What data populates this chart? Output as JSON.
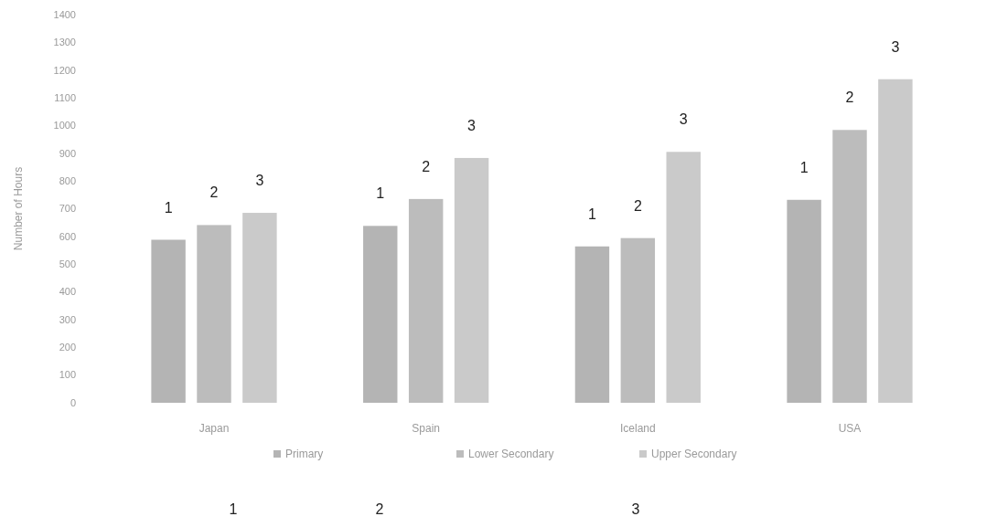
{
  "chart_data": {
    "type": "bar",
    "ylabel": "Number of Hours",
    "categories": [
      "Japan",
      "Spain",
      "Iceland",
      "USA"
    ],
    "series": [
      {
        "name": "Primary",
        "color": "#b4b4b4",
        "values": [
          588,
          638,
          564,
          732
        ]
      },
      {
        "name": "Lower Secondary",
        "color": "#bcbcbc",
        "values": [
          641,
          735,
          594,
          984
        ]
      },
      {
        "name": "Upper Secondary",
        "color": "#cacaca",
        "values": [
          685,
          883,
          905,
          1167
        ]
      }
    ],
    "ylim": [
      0,
      1400
    ],
    "yticks": [
      0,
      100,
      200,
      300,
      400,
      500,
      600,
      700,
      800,
      900,
      1000,
      1100,
      1200,
      1300,
      1400
    ],
    "legend": "bottom",
    "annotations": [
      "1",
      "2",
      "3",
      "1",
      "2",
      "3",
      "1",
      "2",
      "3",
      "1",
      "2",
      "3",
      "1",
      "2",
      "3"
    ]
  }
}
